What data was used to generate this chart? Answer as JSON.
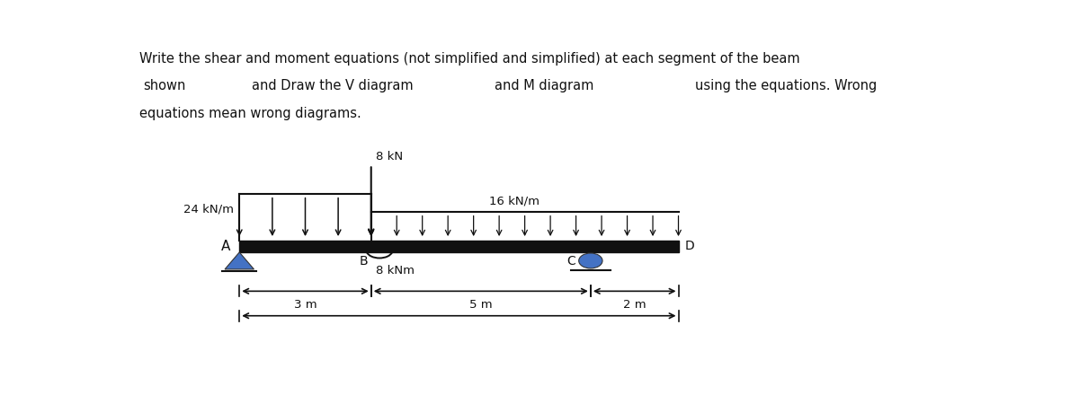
{
  "title_line1": "Write the shear and moment equations (not simplified and simplified) at each segment of the beam",
  "title_line2_parts": [
    "shown",
    "and Draw the V diagram",
    "and M diagram",
    "using the equations. Wrong"
  ],
  "title_line2_x": [
    0.01,
    0.14,
    0.43,
    0.67
  ],
  "title_line3": "equations mean wrong diagrams.",
  "bg_color": "#ffffff",
  "beam_color": "#111111",
  "load_color": "#111111",
  "support_A_color": "#4472c4",
  "support_C_color": "#4472c4",
  "labels": {
    "A": "A",
    "B": "B",
    "C": "C",
    "D": "D",
    "point_load": "8 kN",
    "udl_AB": "24 kN/m",
    "udl_BD": "16 kN/m",
    "moment_B": "8 kNm",
    "seg_AB": "3 m",
    "seg_BC": "5 m",
    "seg_CD": "2 m"
  },
  "fig_width": 12.0,
  "fig_height": 4.4,
  "dpi": 100
}
